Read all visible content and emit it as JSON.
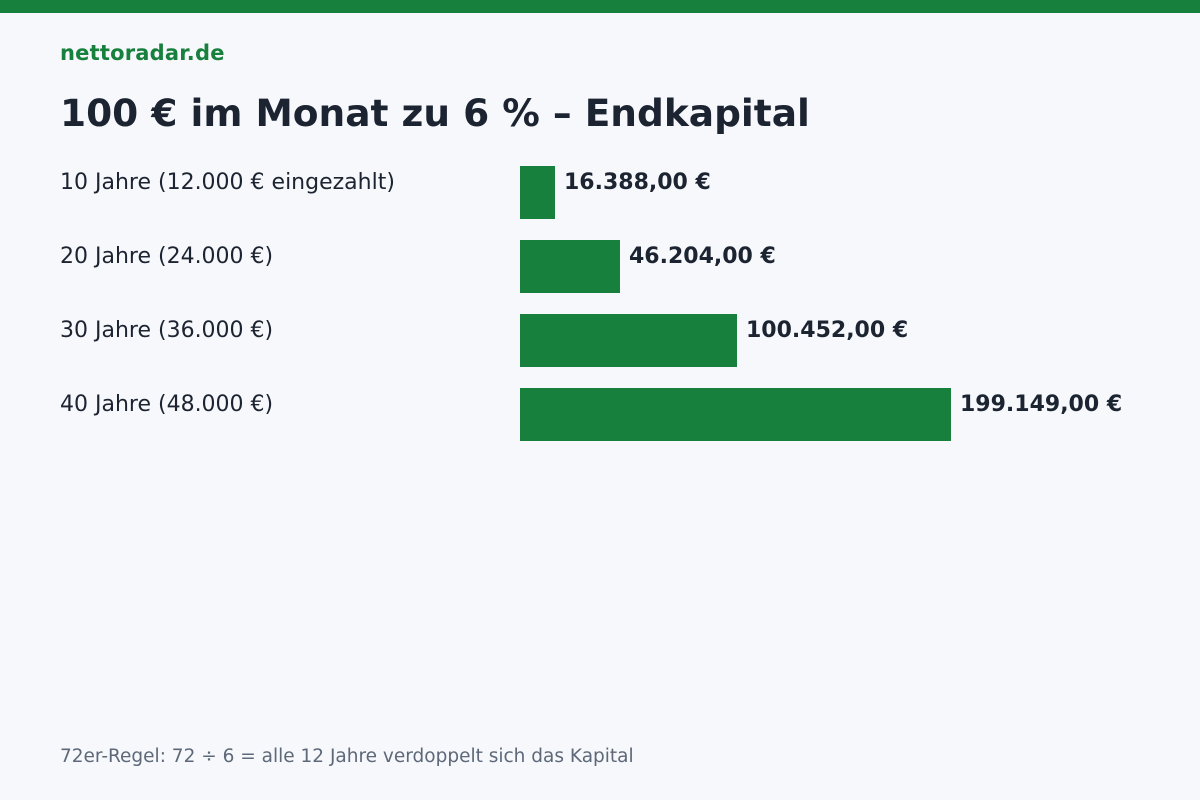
{
  "brand": "nettoradar.de",
  "title": "100 € im Monat zu 6 % – Endkapital",
  "footnote": "72er-Regel: 72 ÷ 6 = alle 12 Jahre verdoppelt sich das Kapital",
  "colors": {
    "accent": "#17803d",
    "text": "#1c2331",
    "muted": "#5d6878",
    "background": "#f6f8fb"
  },
  "chart_data": {
    "type": "bar",
    "orientation": "horizontal",
    "categories": [
      "10 Jahre (12.000 € eingezahlt)",
      "20 Jahre (24.000 €)",
      "30 Jahre (36.000 €)",
      "40 Jahre (48.000 €)"
    ],
    "values": [
      16388,
      46204,
      100452,
      199149
    ],
    "value_labels": [
      "16.388,00 €",
      "46.204,00 €",
      "100.452,00 €",
      "199.149,00 €"
    ],
    "title": "100 € im Monat zu 6 % – Endkapital",
    "xlabel": "",
    "ylabel": "",
    "grid": false,
    "legend": "none"
  }
}
